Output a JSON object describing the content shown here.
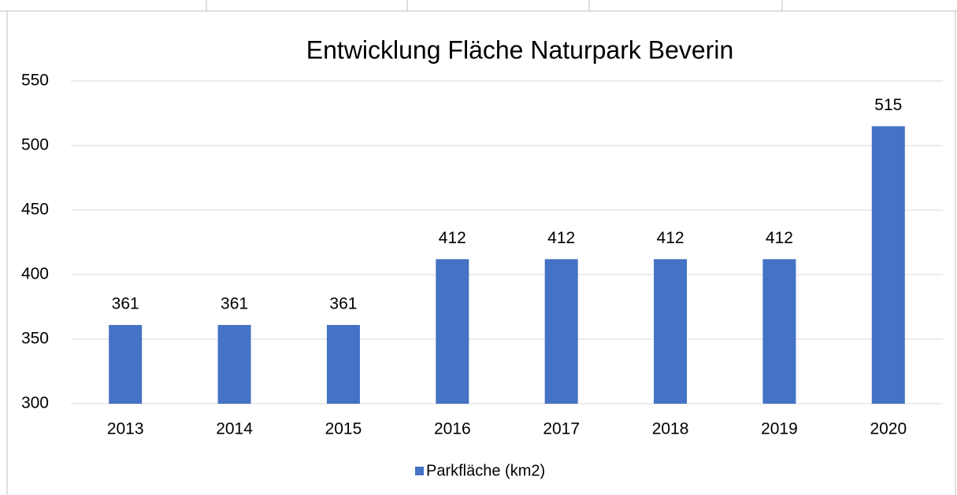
{
  "chart_data": {
    "type": "bar",
    "title": "Entwicklung Fläche Naturpark Beverin",
    "categories": [
      "2013",
      "2014",
      "2015",
      "2016",
      "2017",
      "2018",
      "2019",
      "2020"
    ],
    "series": [
      {
        "name": "Parkfläche (km2)",
        "color": "#4472c4",
        "values": [
          361,
          361,
          361,
          412,
          412,
          412,
          412,
          515
        ]
      }
    ],
    "ylim": [
      300,
      550
    ],
    "yticks": [
      300,
      350,
      400,
      450,
      500,
      550
    ],
    "grid": true,
    "legend": "bottom"
  }
}
